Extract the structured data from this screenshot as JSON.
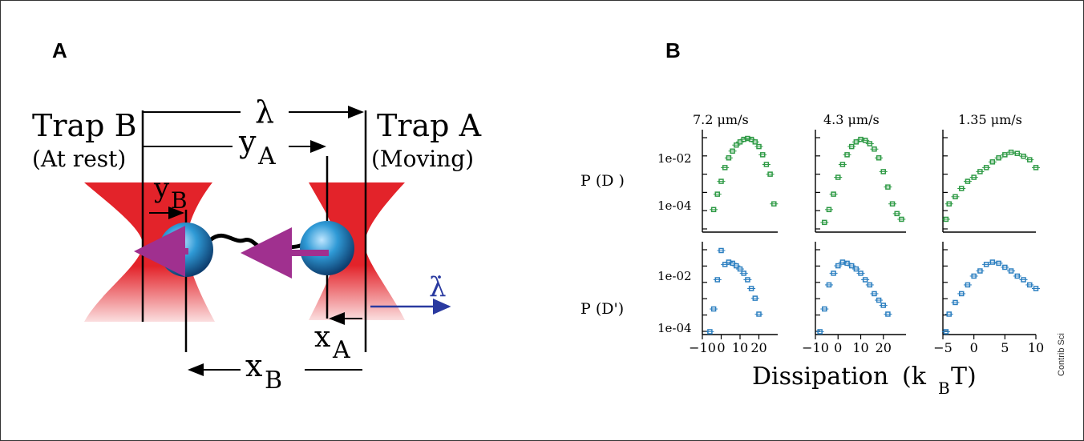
{
  "panel_a": {
    "label": "A",
    "trap_b": "Trap B",
    "trap_b_state": "(At rest)",
    "trap_a": "Trap A",
    "trap_a_state": "(Moving)",
    "lambda": "λ",
    "y_a": "y",
    "y_a_sub": "A",
    "y_b": "y",
    "y_b_sub": "B",
    "x_a": "x",
    "x_a_sub": "A",
    "x_b": "x",
    "x_b_sub": "B",
    "lambda_dot": "λ̇",
    "colors": {
      "trap": "#e8262a",
      "bead": "#1f7fb8",
      "force_arrow": "#a0308f",
      "velocity_arrow": "#2a3aa0"
    }
  },
  "panel_b": {
    "label": "B",
    "speeds": [
      "7.2 μm/s",
      "4.3 μm/s",
      "1.35 μm/s"
    ],
    "ylabel_top": "P (D )",
    "ylabel_bottom": "P (D')",
    "ytick_hi": "1e-02",
    "ytick_lo": "1e-04",
    "xticks": [
      [
        "−10",
        "0",
        "10",
        "20"
      ],
      [
        "−10",
        "0",
        "10",
        "20"
      ],
      [
        "−5",
        "0",
        "5",
        "10"
      ]
    ],
    "xlabel": "Dissipation",
    "xlabel_unit": "(k",
    "xlabel_sub": "B",
    "xlabel_end": "T)",
    "colors": {
      "top_series": "#2e9a45",
      "bottom_series": "#2c7fc0"
    }
  },
  "chart_data": [
    {
      "type": "scatter",
      "panel": "7.2 μm/s",
      "xlim": [
        -10,
        30
      ],
      "yscale": "log",
      "series": [
        {
          "row": "top",
          "x": [
            -4,
            -2,
            0,
            2,
            4,
            6,
            8,
            10,
            12,
            14,
            16,
            18,
            20,
            22,
            24,
            26,
            28
          ],
          "y": [
            0.0002,
            0.0006,
            0.0015,
            0.004,
            0.008,
            0.013,
            0.02,
            0.025,
            0.03,
            0.032,
            0.03,
            0.025,
            0.018,
            0.01,
            0.005,
            0.0025,
            0.0003
          ]
        },
        {
          "row": "bottom",
          "x": [
            -6,
            -4,
            -2,
            0,
            2,
            4,
            6,
            8,
            10,
            12,
            14,
            16,
            18,
            20
          ],
          "y": [
            5e-05,
            0.0003,
            0.003,
            0.03,
            0.01,
            0.012,
            0.011,
            0.009,
            0.007,
            0.005,
            0.003,
            0.0015,
            0.0007,
            0.0002
          ]
        }
      ]
    },
    {
      "type": "scatter",
      "panel": "4.3 μm/s",
      "xlim": [
        -10,
        30
      ],
      "yscale": "log",
      "series": [
        {
          "row": "top",
          "x": [
            -6,
            -4,
            -2,
            0,
            2,
            4,
            6,
            8,
            10,
            12,
            14,
            16,
            18,
            20,
            22,
            24,
            26,
            28
          ],
          "y": [
            8e-05,
            0.0002,
            0.0006,
            0.002,
            0.005,
            0.01,
            0.018,
            0.025,
            0.03,
            0.028,
            0.022,
            0.015,
            0.008,
            0.003,
            0.001,
            0.0003,
            0.00015,
            0.0001
          ]
        },
        {
          "row": "bottom",
          "x": [
            -8,
            -6,
            -4,
            -2,
            0,
            2,
            4,
            6,
            8,
            10,
            12,
            14,
            16,
            18,
            20,
            22
          ],
          "y": [
            5e-05,
            0.0003,
            0.002,
            0.005,
            0.009,
            0.012,
            0.011,
            0.009,
            0.007,
            0.005,
            0.003,
            0.002,
            0.001,
            0.0006,
            0.0004,
            0.0002
          ]
        }
      ]
    },
    {
      "type": "scatter",
      "panel": "1.35 μm/s",
      "xlim": [
        -5,
        10
      ],
      "yscale": "log",
      "series": [
        {
          "row": "top",
          "x": [
            -4.5,
            -4,
            -3,
            -2,
            -1,
            0,
            1,
            2,
            3,
            4,
            5,
            6,
            7,
            8,
            9,
            10
          ],
          "y": [
            0.0001,
            0.0003,
            0.0005,
            0.0009,
            0.0015,
            0.002,
            0.003,
            0.004,
            0.006,
            0.008,
            0.01,
            0.012,
            0.011,
            0.009,
            0.007,
            0.004
          ]
        },
        {
          "row": "bottom",
          "x": [
            -4.5,
            -4,
            -3,
            -2,
            -1,
            0,
            1,
            2,
            3,
            4,
            5,
            6,
            7,
            8,
            9,
            10
          ],
          "y": [
            5e-05,
            0.0002,
            0.0005,
            0.001,
            0.002,
            0.004,
            0.006,
            0.01,
            0.012,
            0.011,
            0.008,
            0.006,
            0.004,
            0.003,
            0.002,
            0.0015
          ]
        }
      ]
    }
  ],
  "credit": "Contrib Sci"
}
